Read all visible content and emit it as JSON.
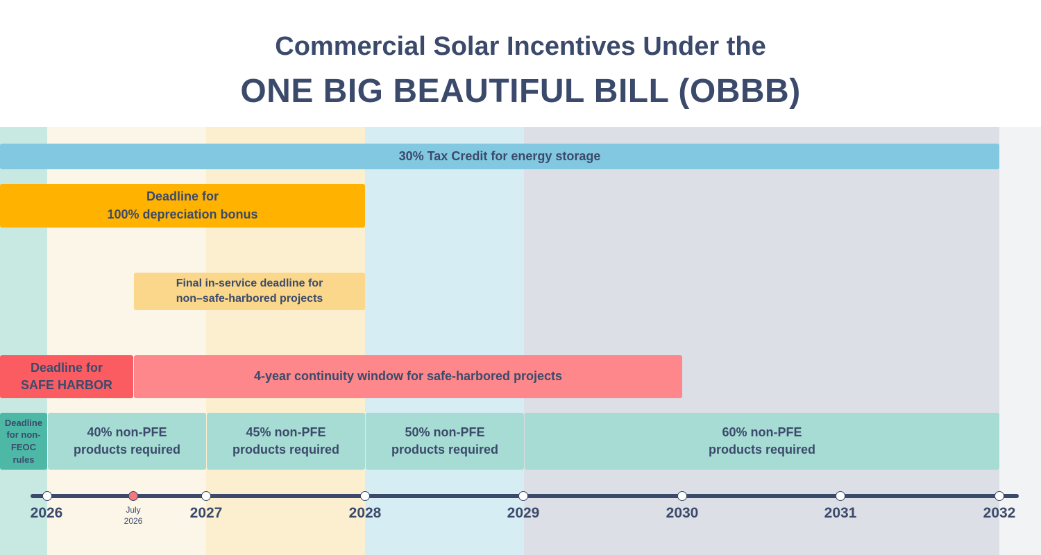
{
  "header": {
    "title_line1": "Commercial Solar Incentives Under the",
    "title_line2": "ONE BIG BEAUTIFUL BILL (OBBB)"
  },
  "colors": {
    "text": "#3b4a6b",
    "storage_bar": "#82c8e0",
    "depreciation_bar": "#ffb300",
    "in_service_bar": "#fad78a",
    "safe_harbor_bar": "#fb5c61",
    "continuity_bar": "#fd878a",
    "feoc_bar": "#4db8a6",
    "pfe_bar": "#a6dcd3"
  },
  "bars": {
    "storage": {
      "label": "30% Tax Credit for energy storage"
    },
    "depreciation": {
      "line1": "Deadline for",
      "line2": "100% depreciation bonus"
    },
    "in_service": {
      "line1": "Final in-service deadline for",
      "line2": "non–safe-harbored projects"
    },
    "safe_harbor": {
      "line1": "Deadline for",
      "line2": "SAFE HARBOR"
    },
    "continuity": {
      "label": "4-year continuity window for safe-harbored projects"
    },
    "feoc": {
      "line1": "Deadline",
      "line2": "for non-",
      "line3": "FEOC",
      "line4": "rules"
    },
    "pfe_40": {
      "line1": "40% non-PFE",
      "line2": "products required"
    },
    "pfe_45": {
      "line1": "45% non-PFE",
      "line2": "products required"
    },
    "pfe_50": {
      "line1": "50% non-PFE",
      "line2": "products required"
    },
    "pfe_60": {
      "line1": "60% non-PFE",
      "line2": "products required"
    }
  },
  "timeline": {
    "years": [
      "2026",
      "2027",
      "2028",
      "2029",
      "2030",
      "2031",
      "2032"
    ],
    "july_label_line1": "July",
    "july_label_line2": "2026"
  }
}
